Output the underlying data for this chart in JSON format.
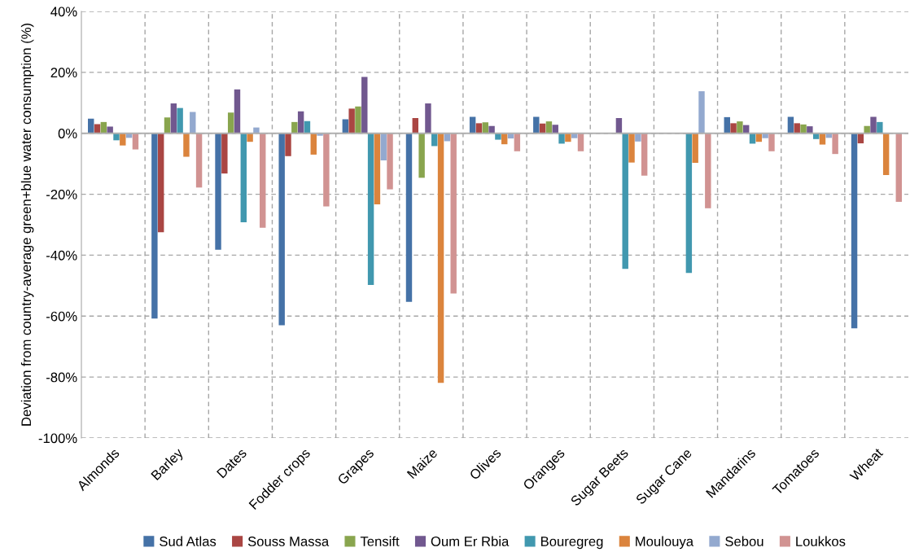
{
  "chart_data": {
    "type": "bar",
    "ylabel": "Deviation from country-average green+blue water consumption (%)",
    "categories": [
      "Almonds",
      "Barley",
      "Dates",
      "Fodder crops",
      "Grapes",
      "Maize",
      "Olives",
      "Oranges",
      "Sugar Beets",
      "Sugar Cane",
      "Mandarins",
      "Tomatoes",
      "Wheat"
    ],
    "series": [
      {
        "name": "Sud Atlas",
        "color": "#4572a7",
        "values": [
          4.8,
          -60.8,
          -38.2,
          -63,
          4.6,
          -55.3,
          5.4,
          5.4,
          null,
          null,
          5.3,
          5.4,
          -64
        ]
      },
      {
        "name": "Souss Massa",
        "color": "#aa4643",
        "values": [
          3,
          -32.5,
          -13.2,
          -7.5,
          8.1,
          5.0,
          3.3,
          3.2,
          null,
          null,
          3.3,
          3.3,
          -3.3
        ]
      },
      {
        "name": "Tensift",
        "color": "#89a54e",
        "values": [
          3.7,
          5.2,
          6.8,
          3.7,
          8.8,
          -14.6,
          3.6,
          3.9,
          null,
          null,
          3.9,
          2.9,
          2.4
        ]
      },
      {
        "name": "Oum Er Rbia",
        "color": "#71588f",
        "values": [
          2.2,
          9.8,
          14.4,
          7.2,
          18.5,
          9.8,
          2.4,
          2.8,
          5.0,
          null,
          2.7,
          2.3,
          5.4
        ]
      },
      {
        "name": "Bouregreg",
        "color": "#4198af",
        "values": [
          -2.3,
          8.3,
          -29.2,
          4.0,
          -49.8,
          -4.2,
          -2.1,
          -3.4,
          -44.5,
          -45.8,
          -3.4,
          -1.9,
          3.7
        ]
      },
      {
        "name": "Moulouya",
        "color": "#db843d",
        "values": [
          -4,
          -7.7,
          -2.8,
          -7,
          -23.3,
          -81.9,
          -3.6,
          -2.8,
          -9.6,
          -9.7,
          -2.8,
          -3.7,
          -13.7
        ]
      },
      {
        "name": "Sebou",
        "color": "#93a9cf",
        "values": [
          -1.5,
          7.0,
          1.9,
          -0.8,
          -8.9,
          -2.6,
          -1.7,
          -1.6,
          -2.7,
          13.8,
          -1.6,
          -1.5,
          null
        ]
      },
      {
        "name": "Loukkos",
        "color": "#d19392",
        "values": [
          -5.3,
          -17.8,
          -31.0,
          -24,
          -18.4,
          -52.6,
          -5.9,
          -5.9,
          -13.9,
          -24.6,
          -5.9,
          -6.8,
          -22.5
        ]
      }
    ],
    "ylim": [
      -100,
      40
    ],
    "yticks": [
      {
        "value": -100,
        "label": "-100%"
      },
      {
        "value": -80,
        "label": "-80%"
      },
      {
        "value": -60,
        "label": "-60%"
      },
      {
        "value": -40,
        "label": "-40%"
      },
      {
        "value": -20,
        "label": "-20%"
      },
      {
        "value": 0,
        "label": "0%"
      },
      {
        "value": 20,
        "label": "20%"
      },
      {
        "value": 40,
        "label": "40%"
      }
    ],
    "grid": true,
    "legend": "bottom"
  }
}
